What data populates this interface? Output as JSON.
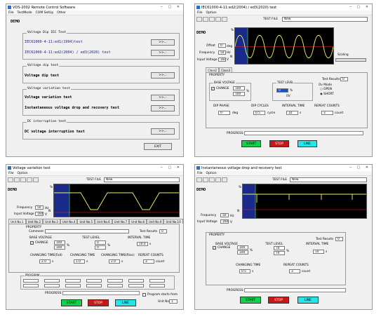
{
  "w1": {
    "title": "VDS-2002 Remote Control Software",
    "menu": [
      "File",
      "TestMode",
      "COM SetUp",
      "Other"
    ],
    "demo": "DEMO",
    "groups": {
      "dip_iec": "Voltage Dip IEC Test",
      "dip": "Voltage dip test",
      "variation": "Voltage variation test",
      "dc": "DC interruption test"
    },
    "items": {
      "iec1": "IEC61000-4-11:ed1(1994)test",
      "iec2": "IEC61000-4-11:ed2(2004) / ed3(2020) test",
      "dip": "Voltage dip test",
      "variation": "Voltage variation test",
      "instant": "Instantaneous voltage drop and recovery test",
      "dc": "DC voltage interruption test"
    },
    "go": ">>...",
    "exit": "EXIT"
  },
  "w2": {
    "title": "IEC61000-4-11:ed2(2004) / ed3(2020) test",
    "menu": [
      "File",
      "Option"
    ],
    "demo": "DEMO",
    "test_file_label": "TEST FILE",
    "test_file": "New",
    "offset_label": "Offset",
    "offset": "0",
    "offset_unit": "deg",
    "freq_label": "Frequency",
    "freq": "50",
    "freq_unit": "Hz",
    "inv_label": "Input Voltage",
    "inv": "160",
    "inv_unit": "V",
    "scaling": "Scaling",
    "scope_n": "N",
    "scope_pct": "%",
    "tabs": [
      "Class2",
      "Class3"
    ],
    "property": "PROPERTY",
    "test_results": "Test Results",
    "test_results_val": "0",
    "base_voltage": "BASE VOLTAGE",
    "change": "CHANGE",
    "bv1": "100",
    "bv2": "100",
    "pct": "%",
    "test_level": "TEST LEVEL",
    "tl": "0",
    "tl_v": "0V",
    "ov_mode": "Ov Mode",
    "open": "OPEN",
    "short": "SHORT",
    "dip_phase": "DIP PHASE",
    "dip_phase_val": "0",
    "deg": "deg",
    "dip_cycles": "DIP CYCLES",
    "dip_cycles_val": "0.5",
    "cycle": "cycle",
    "interval": "INTERVAL TIME",
    "interval_val": "10",
    "s": "s",
    "repeat": "REPEAT COUNTS",
    "repeat_val": "3",
    "count": "count",
    "progress": "PROGRESS",
    "start": "START",
    "stop": "STOP",
    "line": "LINE"
  },
  "w3": {
    "title": "Voltage variation test",
    "menu": [
      "File",
      "Option"
    ],
    "demo": "DEMO",
    "test_file_label": "TEST FILE",
    "test_file": "New",
    "freq_label": "Frequency",
    "freq": "50",
    "freq_unit": "Hz",
    "inv_label": "Input Voltage",
    "inv": "160",
    "inv_unit": "V",
    "scope_n": "N",
    "scope_pct": "%",
    "tabs": [
      "Unit No.1",
      "Unit No.2",
      "Unit No.3",
      "Unit No.4",
      "Unit No.5",
      "Unit No.6",
      "Unit No.7",
      "Unit No.8",
      "Unit No.9",
      "Unit No.10"
    ],
    "property": "PROPERTY",
    "comment": "Comment",
    "test_results": "Test Results",
    "test_results_val": "0",
    "base_voltage": "BASE VOLTAGE",
    "change": "CHANGE",
    "bv1": "100",
    "bv2": "100",
    "test_level": "TEST LEVEL",
    "tl1": "0",
    "tl2": "0",
    "interval": "INTERVAL TIME",
    "interval_val": "10.0",
    "s": "s",
    "pct": "%",
    "ct_fall": "CHANGING TIME(Fall)",
    "ct_fall_val": "2.0",
    "change_time": "CHANGING TIME",
    "change_time_val": "1.0",
    "ct_rise": "CHANGING TIME(Rise)",
    "ct_rise_val": "2.0",
    "repeat": "REPEAT COUNTS",
    "repeat_val": "3",
    "count": "count",
    "program": "PROGRAM",
    "progress": "PROGRESS",
    "start": "START",
    "stop": "STOP",
    "line": "LINE",
    "prog_start": "Program starts from",
    "unit_no": "Unit No.",
    "unit_no_val": "1"
  },
  "w4": {
    "title": "Instantaneous voltage drop and recovery test",
    "menu": [
      "File",
      "Option"
    ],
    "demo": "DEMO",
    "test_file_label": "TEST FILE",
    "test_file": "New",
    "freq_label": "Frequency",
    "freq": "50",
    "freq_unit": "Hz",
    "inv_label": "Input Voltage",
    "inv": "160",
    "inv_unit": "V",
    "scope_n": "N",
    "scope_pct": "%",
    "property": "PROPERTY",
    "test_results": "Test Results",
    "test_results_val": "0",
    "base_voltage": "BASE VOLTAGE",
    "change": "CHANGE",
    "bv1": "100",
    "bv2": "100",
    "pct": "%",
    "test_level": "TEST LEVEL",
    "tl1": "70",
    "tl2": "70",
    "interval": "INTERVAL TIME",
    "interval_val": "10",
    "s": "s",
    "change_time": "CHANGING TIME",
    "change_time_val": "0.5",
    "repeat": "REPEAT COUNTS",
    "repeat_val": "3",
    "count": "count",
    "progress": "PROGRESS",
    "start": "START",
    "stop": "STOP",
    "line": "LINE"
  },
  "colors": {
    "wave": "#f2f26b",
    "scope": "#000000",
    "start": "#12d04a",
    "stop": "#c81818",
    "line": "#22e6ea",
    "link": "#1a237e"
  }
}
